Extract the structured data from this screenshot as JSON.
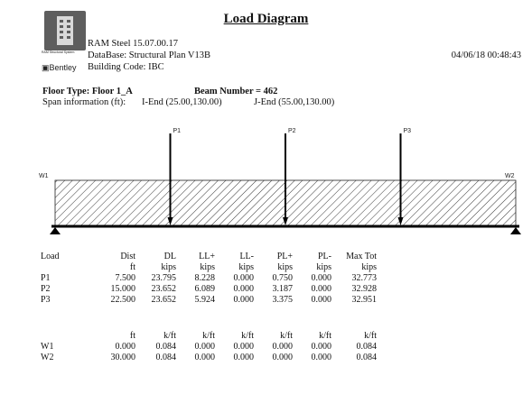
{
  "header": {
    "title": "Load Diagram",
    "software": "RAM Steel 15.07.00.17",
    "database": "DataBase: Structural Plan V13B",
    "building_code": "Building Code: IBC",
    "timestamp": "04/06/18 00:48:43",
    "logo_caption": "RAM Structural System",
    "vendor": "Bentley"
  },
  "beam": {
    "floor_type": "Floor Type: Floor 1_A",
    "beam_number": "Beam Number = 462",
    "span_label": "Span information (ft):",
    "i_end": "I-End (25.00,130.00)",
    "j_end": "J-End (55.00,130.00)"
  },
  "diagram": {
    "span_ft": 30,
    "point_loads": [
      {
        "label": "P1",
        "dist_ft": 7.5
      },
      {
        "label": "P2",
        "dist_ft": 15.0
      },
      {
        "label": "P3",
        "dist_ft": 22.5
      }
    ],
    "dist_loads": [
      {
        "label": "W1",
        "dist_ft": 0.0
      },
      {
        "label": "W2",
        "dist_ft": 30.0
      }
    ]
  },
  "point_table": {
    "headers1": [
      "Load",
      "Dist",
      "DL",
      "LL+",
      "LL-",
      "PL+",
      "PL-",
      "Max Tot"
    ],
    "headers2": [
      "",
      "ft",
      "kips",
      "kips",
      "kips",
      "kips",
      "kips",
      "kips"
    ],
    "rows": [
      [
        "P1",
        "7.500",
        "23.795",
        "8.228",
        "0.000",
        "0.750",
        "0.000",
        "32.773"
      ],
      [
        "P2",
        "15.000",
        "23.652",
        "6.089",
        "0.000",
        "3.187",
        "0.000",
        "32.928"
      ],
      [
        "P3",
        "22.500",
        "23.652",
        "5.924",
        "0.000",
        "3.375",
        "0.000",
        "32.951"
      ]
    ]
  },
  "dist_table": {
    "headers": [
      "",
      "ft",
      "k/ft",
      "k/ft",
      "k/ft",
      "k/ft",
      "k/ft",
      "k/ft"
    ],
    "rows": [
      [
        "W1",
        "0.000",
        "0.084",
        "0.000",
        "0.000",
        "0.000",
        "0.000",
        "0.084"
      ],
      [
        "W2",
        "30.000",
        "0.084",
        "0.000",
        "0.000",
        "0.000",
        "0.000",
        "0.084"
      ]
    ]
  }
}
